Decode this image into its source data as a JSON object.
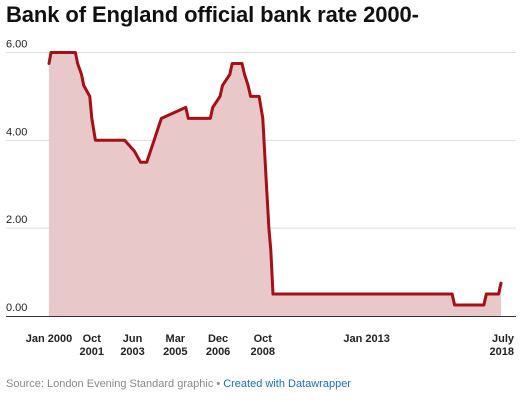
{
  "title": "Bank of England official bank rate 2000-",
  "footer": {
    "source": "Source: London Evening Standard graphic",
    "separator": "•",
    "link": "Created with Datawrapper"
  },
  "colors": {
    "line": "#a50f15",
    "fill": "#e8c8c8",
    "grid": "#dddddd",
    "axis": "#333333"
  },
  "chart_data": {
    "type": "area",
    "title": "Bank of England official bank rate 2000-",
    "xlabel": "",
    "ylabel": "",
    "xlim": [
      2000.0,
      2018.5
    ],
    "ylim": [
      0,
      6.25
    ],
    "grid": "horizontal",
    "y_ticks": [
      {
        "value": 0,
        "label": "0.00"
      },
      {
        "value": 2,
        "label": "2.00"
      },
      {
        "value": 4,
        "label": "4.00"
      },
      {
        "value": 6,
        "label": "6.00"
      }
    ],
    "x_ticks": [
      {
        "value": 2000.0,
        "line1": "Jan 2000",
        "line2": ""
      },
      {
        "value": 2001.75,
        "line1": "Oct",
        "line2": "2001"
      },
      {
        "value": 2003.42,
        "line1": "Jun",
        "line2": "2003"
      },
      {
        "value": 2005.17,
        "line1": "Mar",
        "line2": "2005"
      },
      {
        "value": 2006.92,
        "line1": "Dec",
        "line2": "2006"
      },
      {
        "value": 2008.75,
        "line1": "Oct",
        "line2": "2008"
      },
      {
        "value": 2013.0,
        "line1": "Jan 2013",
        "line2": ""
      },
      {
        "value": 2018.5,
        "line1": "July",
        "line2": "2018"
      }
    ],
    "series": [
      {
        "name": "",
        "x": [
          2000.0,
          2000.08,
          2000.17,
          2001.08,
          2001.17,
          2001.33,
          2001.42,
          2001.67,
          2001.75,
          2001.9,
          2002.0,
          2003.1,
          2003.5,
          2003.75,
          2004.0,
          2004.15,
          2004.3,
          2004.45,
          2004.6,
          2005.6,
          2005.7,
          2006.6,
          2006.7,
          2007.0,
          2007.1,
          2007.4,
          2007.5,
          2007.9,
          2008.0,
          2008.15,
          2008.25,
          2008.6,
          2008.75,
          2008.9,
          2009.0,
          2009.08,
          2009.17,
          2016.5,
          2016.6,
          2017.8,
          2017.9,
          2018.4,
          2018.5
        ],
        "y": [
          5.75,
          6.0,
          6.0,
          6.0,
          5.75,
          5.5,
          5.25,
          5.0,
          4.5,
          4.0,
          4.0,
          4.0,
          3.75,
          3.5,
          3.5,
          3.75,
          4.0,
          4.25,
          4.5,
          4.75,
          4.5,
          4.5,
          4.75,
          5.0,
          5.25,
          5.5,
          5.75,
          5.75,
          5.5,
          5.25,
          5.0,
          5.0,
          4.5,
          3.0,
          2.0,
          1.5,
          0.5,
          0.5,
          0.25,
          0.25,
          0.5,
          0.5,
          0.75
        ]
      }
    ]
  }
}
